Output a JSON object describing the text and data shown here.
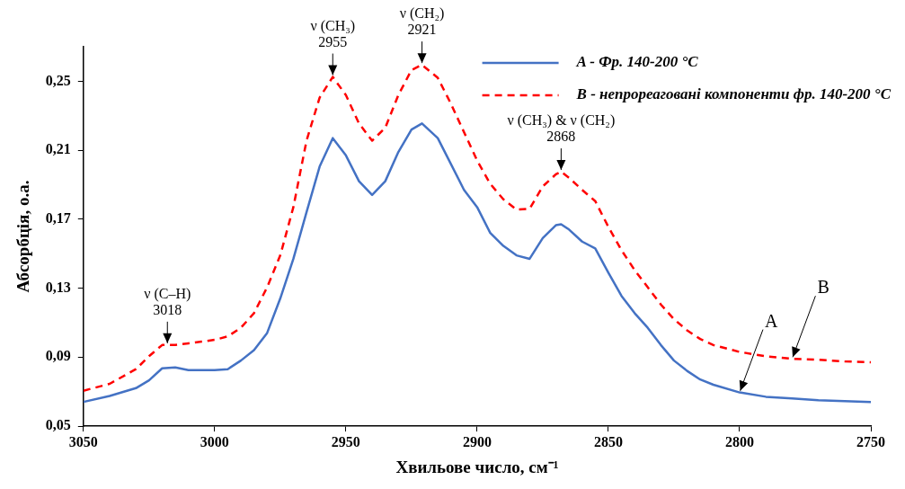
{
  "chart_data": {
    "type": "line",
    "xlabel": "Хвильове число, см⁻¹",
    "ylabel": "Абсорбція, о.а.",
    "x": [
      3050,
      3040,
      3030,
      3025,
      3020,
      3015,
      3010,
      3005,
      3000,
      2995,
      2990,
      2985,
      2980,
      2975,
      2970,
      2965,
      2960,
      2955,
      2950,
      2945,
      2940,
      2935,
      2930,
      2925,
      2921,
      2915,
      2910,
      2905,
      2900,
      2895,
      2890,
      2885,
      2880,
      2875,
      2870,
      2868,
      2865,
      2860,
      2855,
      2850,
      2845,
      2840,
      2835,
      2830,
      2825,
      2820,
      2815,
      2810,
      2800,
      2790,
      2780,
      2770,
      2760,
      2750
    ],
    "series": [
      {
        "name": "A - Фр. 140-200 °C",
        "color": "#4472c4",
        "line_style": "solid",
        "values": [
          0.064,
          0.0675,
          0.072,
          0.0765,
          0.0835,
          0.084,
          0.0825,
          0.0825,
          0.0825,
          0.083,
          0.088,
          0.094,
          0.104,
          0.124,
          0.147,
          0.174,
          0.2005,
          0.217,
          0.207,
          0.192,
          0.184,
          0.192,
          0.209,
          0.222,
          0.2255,
          0.217,
          0.202,
          0.187,
          0.177,
          0.162,
          0.1545,
          0.149,
          0.147,
          0.159,
          0.1665,
          0.167,
          0.164,
          0.157,
          0.153,
          0.139,
          0.1255,
          0.1155,
          0.107,
          0.097,
          0.088,
          0.082,
          0.077,
          0.074,
          0.0695,
          0.067,
          0.066,
          0.065,
          0.0645,
          0.064
        ]
      },
      {
        "name": "B - непрореаговані компоненти фр. 140-200 °C",
        "color": "#ff0000",
        "line_style": "dashed",
        "values": [
          0.0705,
          0.0745,
          0.083,
          0.0905,
          0.097,
          0.097,
          0.098,
          0.099,
          0.1,
          0.102,
          0.107,
          0.1155,
          0.1305,
          0.149,
          0.177,
          0.2155,
          0.2405,
          0.2525,
          0.242,
          0.2255,
          0.2155,
          0.223,
          0.242,
          0.2565,
          0.2595,
          0.252,
          0.237,
          0.2205,
          0.204,
          0.1905,
          0.1815,
          0.1755,
          0.176,
          0.189,
          0.196,
          0.1975,
          0.194,
          0.187,
          0.1805,
          0.1655,
          0.152,
          0.1405,
          0.1305,
          0.1205,
          0.112,
          0.1055,
          0.1005,
          0.097,
          0.093,
          0.0905,
          0.089,
          0.0885,
          0.0875,
          0.087
        ]
      }
    ],
    "xlim": [
      3050,
      2750
    ],
    "xticks": [
      3050,
      3000,
      2950,
      2900,
      2850,
      2800,
      2750
    ],
    "ylim": [
      0.05,
      0.27
    ],
    "yticks": [
      {
        "value": 0.05,
        "label": "0,05"
      },
      {
        "value": 0.09,
        "label": "0,09"
      },
      {
        "value": 0.13,
        "label": "0,13"
      },
      {
        "value": 0.17,
        "label": "0,17"
      },
      {
        "value": 0.21,
        "label": "0,21"
      },
      {
        "value": 0.25,
        "label": "0,25"
      }
    ],
    "grid": false,
    "legend": "top right",
    "marker": "none",
    "annotations": [
      {
        "text": "ν (C–H)\n3018",
        "x": 3018,
        "y": 0.097
      },
      {
        "text": "ν (CH₃)\n2955",
        "x": 2955,
        "y": 0.2525
      },
      {
        "text": "ν (CH₂)\n2921",
        "x": 2921,
        "y": 0.2595
      },
      {
        "text": "ν (CH₃) & ν (CH₂)\n2868",
        "x": 2868,
        "y": 0.1975
      },
      {
        "text": "A",
        "x": 2800,
        "y": 0.0695
      },
      {
        "text": "B",
        "x": 2780,
        "y": 0.089
      }
    ]
  }
}
